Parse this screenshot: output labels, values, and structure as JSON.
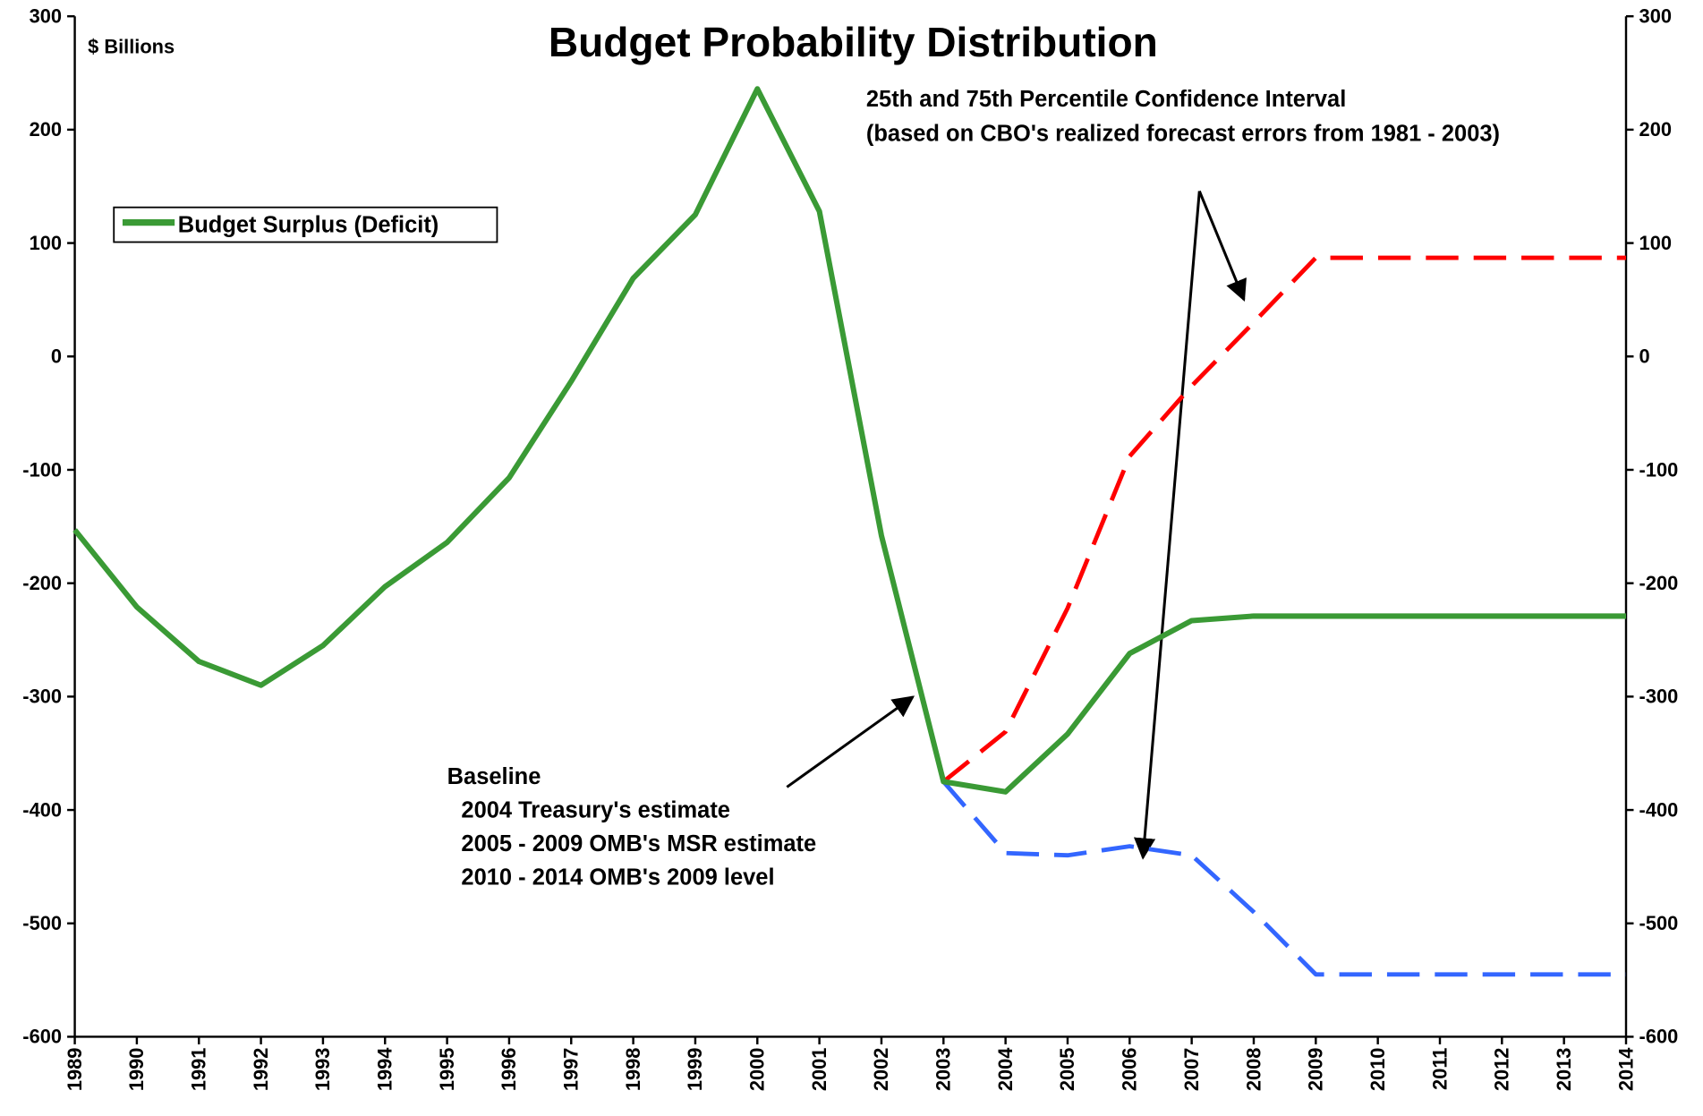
{
  "chart_data": {
    "type": "line",
    "title": "Budget Probability Distribution",
    "annotations": [
      "$ Billions",
      "25th and 75th Percentile Confidence Interval",
      "(based on CBO's realized forecast errors from 1981 - 2003)",
      "Baseline",
      "2004 Treasury's estimate",
      "2005 - 2009  OMB's MSR estimate",
      "2010 - 2014  OMB's 2009 level"
    ],
    "categories": [
      "1989",
      "1990",
      "1991",
      "1992",
      "1993",
      "1994",
      "1995",
      "1996",
      "1997",
      "1998",
      "1999",
      "2000",
      "2001",
      "2002",
      "2003",
      "2004",
      "2005",
      "2006",
      "2007",
      "2008",
      "2009",
      "2010",
      "2011",
      "2012",
      "2013",
      "2014"
    ],
    "series": [
      {
        "name": "Budget Surplus (Deficit)",
        "color": "#3a9a35",
        "dashed": false,
        "values": [
          -153,
          -221,
          -269,
          -290,
          -255,
          -203,
          -164,
          -107,
          -22,
          69,
          125,
          236,
          128,
          -158,
          -375,
          -384,
          -333,
          -262,
          -233,
          -229,
          -229,
          -229,
          -229,
          -229,
          -229,
          -229
        ]
      },
      {
        "color": "#ff0000",
        "dashed": true,
        "values": [
          null,
          null,
          null,
          null,
          null,
          null,
          null,
          null,
          null,
          null,
          null,
          null,
          null,
          null,
          -375,
          -331,
          -222,
          -88,
          -26,
          30,
          87,
          87,
          87,
          87,
          87,
          87
        ]
      },
      {
        "color": "#3366ff",
        "dashed": true,
        "values": [
          null,
          null,
          null,
          null,
          null,
          null,
          null,
          null,
          null,
          null,
          null,
          null,
          null,
          null,
          -375,
          -438,
          -440,
          -432,
          -440,
          -490,
          -545,
          -545,
          -545,
          -545,
          -545,
          -545
        ]
      }
    ],
    "ylim": [
      -600,
      300
    ],
    "yticks": [
      -600,
      -500,
      -400,
      -300,
      -200,
      -100,
      0,
      100,
      200,
      300
    ],
    "y2lim": [
      -600,
      300
    ],
    "y2ticks": [
      -600,
      -500,
      -400,
      -300,
      -200,
      -100,
      0,
      100,
      200,
      300
    ],
    "grid": false,
    "legend": "upper left"
  }
}
